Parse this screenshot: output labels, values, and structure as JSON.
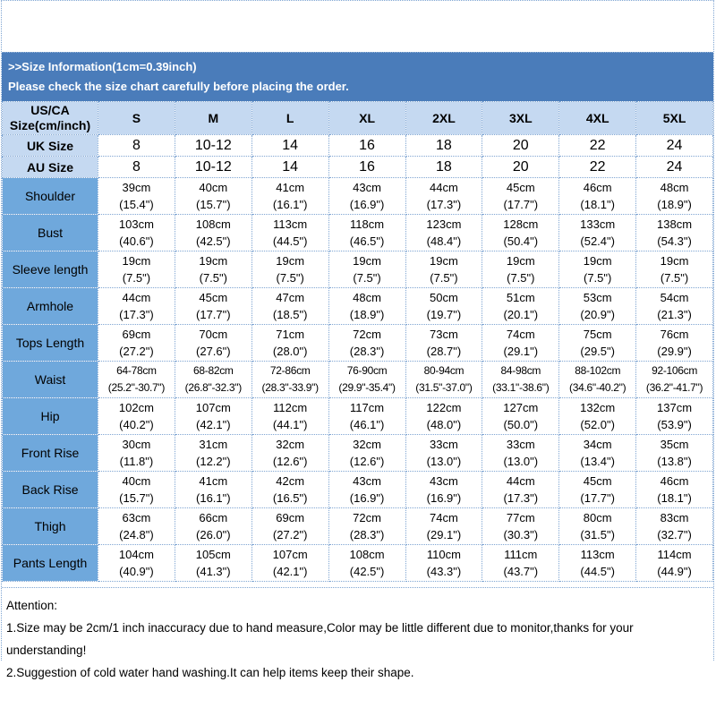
{
  "banner": {
    "line1": ">>Size Information(1cm=0.39inch)",
    "line2": "Please check the size chart carefully before placing the order."
  },
  "colors": {
    "banner_bg": "#4a7cba",
    "header_bg": "#c5d9f1",
    "label_bg": "#6fa8dc",
    "grid_dotted": "#7fa5d2",
    "banner_text": "#ffffff"
  },
  "table": {
    "corner": {
      "line1": "US/CA",
      "line2": "Size(cm/inch)"
    },
    "size_headers": [
      "S",
      "M",
      "L",
      "XL",
      "2XL",
      "3XL",
      "4XL",
      "5XL"
    ],
    "uk_row": {
      "label": "UK Size",
      "values": [
        "8",
        "10-12",
        "14",
        "16",
        "18",
        "20",
        "22",
        "24"
      ]
    },
    "au_row": {
      "label": "AU Size",
      "values": [
        "8",
        "10-12",
        "14",
        "16",
        "18",
        "20",
        "22",
        "24"
      ]
    },
    "rows": [
      {
        "label": "Shoulder",
        "cm": [
          "39cm",
          "40cm",
          "41cm",
          "43cm",
          "44cm",
          "45cm",
          "46cm",
          "48cm"
        ],
        "inch": [
          "(15.4\")",
          "(15.7\")",
          "(16.1\")",
          "(16.9\")",
          "(17.3\")",
          "(17.7\")",
          "(18.1\")",
          "(18.9\")"
        ]
      },
      {
        "label": "Bust",
        "cm": [
          "103cm",
          "108cm",
          "113cm",
          "118cm",
          "123cm",
          "128cm",
          "133cm",
          "138cm"
        ],
        "inch": [
          "(40.6\")",
          "(42.5\")",
          "(44.5\")",
          "(46.5\")",
          "(48.4\")",
          "(50.4\")",
          "(52.4\")",
          "(54.3\")"
        ]
      },
      {
        "label": "Sleeve length",
        "cm": [
          "19cm",
          "19cm",
          "19cm",
          "19cm",
          "19cm",
          "19cm",
          "19cm",
          "19cm"
        ],
        "inch": [
          "(7.5\")",
          "(7.5\")",
          "(7.5\")",
          "(7.5\")",
          "(7.5\")",
          "(7.5\")",
          "(7.5\")",
          "(7.5\")"
        ]
      },
      {
        "label": "Armhole",
        "cm": [
          "44cm",
          "45cm",
          "47cm",
          "48cm",
          "50cm",
          "51cm",
          "53cm",
          "54cm"
        ],
        "inch": [
          "(17.3\")",
          "(17.7\")",
          "(18.5\")",
          "(18.9\")",
          "(19.7\")",
          "(20.1\")",
          "(20.9\")",
          "(21.3\")"
        ]
      },
      {
        "label": "Tops Length",
        "cm": [
          "69cm",
          "70cm",
          "71cm",
          "72cm",
          "73cm",
          "74cm",
          "75cm",
          "76cm"
        ],
        "inch": [
          "(27.2\")",
          "(27.6\")",
          "(28.0\")",
          "(28.3\")",
          "(28.7\")",
          "(29.1\")",
          "(29.5\")",
          "(29.9\")"
        ]
      },
      {
        "label": "Waist",
        "cm": [
          "64-78cm",
          "68-82cm",
          "72-86cm",
          "76-90cm",
          "80-94cm",
          "84-98cm",
          "88-102cm",
          "92-106cm"
        ],
        "inch": [
          "(25.2\"-30.7\")",
          "(26.8\"-32.3\")",
          "(28.3\"-33.9\")",
          "(29.9\"-35.4\")",
          "(31.5\"-37.0\")",
          "(33.1\"-38.6\")",
          "(34.6\"-40.2\")",
          "(36.2\"-41.7\")"
        ]
      },
      {
        "label": "Hip",
        "cm": [
          "102cm",
          "107cm",
          "112cm",
          "117cm",
          "122cm",
          "127cm",
          "132cm",
          "137cm"
        ],
        "inch": [
          "(40.2\")",
          "(42.1\")",
          "(44.1\")",
          "(46.1\")",
          "(48.0\")",
          "(50.0\")",
          "(52.0\")",
          "(53.9\")"
        ]
      },
      {
        "label": "Front Rise",
        "cm": [
          "30cm",
          "31cm",
          "32cm",
          "32cm",
          "33cm",
          "33cm",
          "34cm",
          "35cm"
        ],
        "inch": [
          "(11.8\")",
          "(12.2\")",
          "(12.6\")",
          "(12.6\")",
          "(13.0\")",
          "(13.0\")",
          "(13.4\")",
          "(13.8\")"
        ]
      },
      {
        "label": "Back Rise",
        "cm": [
          "40cm",
          "41cm",
          "42cm",
          "43cm",
          "43cm",
          "44cm",
          "45cm",
          "46cm"
        ],
        "inch": [
          "(15.7\")",
          "(16.1\")",
          "(16.5\")",
          "(16.9\")",
          "(16.9\")",
          "(17.3\")",
          "(17.7\")",
          "(18.1\")"
        ]
      },
      {
        "label": "Thigh",
        "cm": [
          "63cm",
          "66cm",
          "69cm",
          "72cm",
          "74cm",
          "77cm",
          "80cm",
          "83cm"
        ],
        "inch": [
          "(24.8\")",
          "(26.0\")",
          "(27.2\")",
          "(28.3\")",
          "(29.1\")",
          "(30.3\")",
          "(31.5\")",
          "(32.7\")"
        ]
      },
      {
        "label": "Pants Length",
        "cm": [
          "104cm",
          "105cm",
          "107cm",
          "108cm",
          "110cm",
          "111cm",
          "113cm",
          "114cm"
        ],
        "inch": [
          "(40.9\")",
          "(41.3\")",
          "(42.1\")",
          "(42.5\")",
          "(43.3\")",
          "(43.7\")",
          "(44.5\")",
          "(44.9\")"
        ]
      }
    ]
  },
  "attention": {
    "title": "Attention:",
    "note1": "1.Size may be 2cm/1 inch inaccuracy due to hand measure,Color may be little different due to monitor,thanks for your understanding!",
    "note2": "2.Suggestion of cold water hand washing.It can help items keep their shape."
  }
}
